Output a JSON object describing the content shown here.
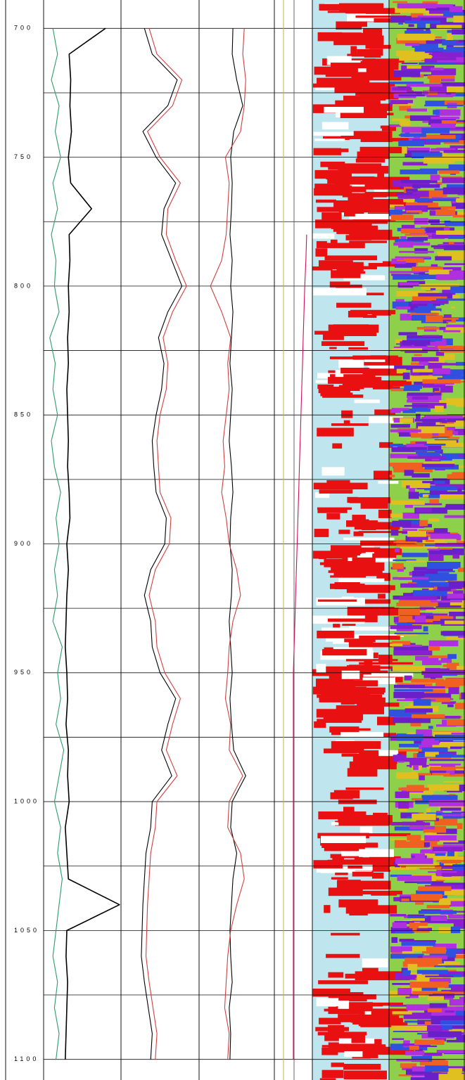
{
  "chart_data": {
    "type": "well_log",
    "ylim": [
      689,
      1108
    ],
    "yticks": [
      700,
      750,
      800,
      850,
      900,
      950,
      1000,
      1050,
      1100
    ],
    "minor_yticks": [
      725,
      775,
      825,
      875,
      925,
      975,
      1025,
      1075
    ],
    "xlim": [
      0,
      100
    ],
    "grid": true,
    "depth": [
      700,
      710,
      720,
      730,
      740,
      750,
      760,
      770,
      780,
      790,
      800,
      810,
      820,
      830,
      840,
      850,
      860,
      870,
      880,
      890,
      900,
      910,
      920,
      930,
      940,
      950,
      960,
      970,
      980,
      990,
      1000,
      1010,
      1020,
      1030,
      1040,
      1050,
      1060,
      1070,
      1080,
      1090,
      1100
    ],
    "series": [
      {
        "color": "#2a9d6a",
        "values": [
          12,
          18,
          10,
          20,
          15,
          22,
          12,
          18,
          10,
          16,
          14,
          20,
          8,
          15,
          12,
          18,
          10,
          14,
          22,
          16,
          20,
          14,
          18,
          12,
          24,
          18,
          22,
          16,
          26,
          20,
          14,
          22,
          18,
          24,
          20,
          16,
          12,
          18,
          14,
          20,
          16
        ]
      },
      {
        "color": "#000000",
        "values": [
          80,
          33,
          35,
          34,
          36,
          32,
          35,
          62,
          33,
          34,
          32,
          33,
          31,
          32,
          30,
          31,
          32,
          31,
          33,
          34,
          30,
          32,
          30,
          29,
          28,
          30,
          31,
          29,
          32,
          31,
          33,
          28,
          30,
          32,
          98,
          30,
          29,
          31,
          30,
          29,
          28
        ]
      },
      {
        "color": "#000000",
        "values": [
          30,
          40,
          72,
          60,
          28,
          45,
          70,
          55,
          52,
          65,
          78,
          60,
          48,
          55,
          52,
          45,
          40,
          42,
          45,
          58,
          56,
          38,
          30,
          38,
          40,
          50,
          70,
          60,
          52,
          65,
          40,
          38,
          32,
          30,
          28,
          27,
          26,
          30,
          35,
          40,
          38
        ]
      },
      {
        "color": "#d04040",
        "values": [
          36,
          46,
          78,
          66,
          34,
          50,
          76,
          60,
          58,
          70,
          84,
          66,
          54,
          60,
          58,
          50,
          46,
          48,
          50,
          64,
          62,
          44,
          36,
          44,
          46,
          56,
          76,
          66,
          58,
          72,
          46,
          44,
          38,
          36,
          34,
          33,
          32,
          36,
          41,
          46,
          44
        ]
      },
      {
        "color": "#000000",
        "values": [
          45,
          44,
          50,
          58,
          46,
          42,
          44,
          43,
          41,
          44,
          42,
          45,
          43,
          41,
          44,
          42,
          40,
          43,
          45,
          42,
          41,
          44,
          43,
          40,
          42,
          44,
          41,
          43,
          46,
          62,
          44,
          42,
          50,
          45,
          43,
          41,
          42,
          44,
          40,
          42,
          41
        ]
      },
      {
        "color": "#d04040",
        "values": [
          60,
          58,
          62,
          60,
          55,
          35,
          40,
          38,
          36,
          30,
          15,
          30,
          42,
          38,
          40,
          36,
          32,
          34,
          30,
          36,
          40,
          50,
          55,
          45,
          40,
          38,
          35,
          42,
          40,
          58,
          40,
          38,
          55,
          60,
          50,
          42,
          38,
          36,
          34,
          40,
          38
        ]
      },
      {
        "color": "#d0105a",
        "values": [
          null,
          null,
          null,
          null,
          null,
          null,
          null,
          null,
          85,
          83,
          80,
          78,
          76,
          74,
          72,
          70,
          68,
          66,
          64,
          62,
          60,
          58,
          56,
          54,
          52,
          50,
          50,
          50,
          50,
          50,
          50,
          50,
          50,
          50,
          50,
          50,
          50,
          50,
          50,
          50,
          50
        ]
      }
    ]
  }
}
